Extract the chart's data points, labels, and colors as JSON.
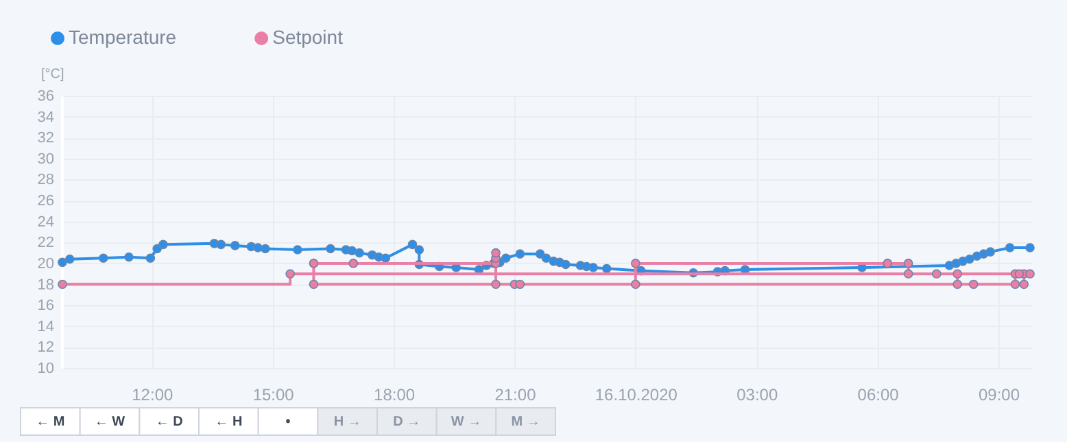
{
  "chart_data": {
    "type": "line",
    "ylabel": "[°C]",
    "xlim": [
      "2020-10-15T09:46",
      "2020-10-16T09:49"
    ],
    "xticks": [
      {
        "value": "2020-10-15T12:00",
        "label": "12:00"
      },
      {
        "value": "2020-10-15T15:00",
        "label": "15:00"
      },
      {
        "value": "2020-10-15T18:00",
        "label": "18:00"
      },
      {
        "value": "2020-10-15T21:00",
        "label": "21:00"
      },
      {
        "value": "2020-10-16T00:00",
        "label": "16.10.2020"
      },
      {
        "value": "2020-10-16T03:00",
        "label": "03:00"
      },
      {
        "value": "2020-10-16T06:00",
        "label": "06:00"
      },
      {
        "value": "2020-10-16T09:00",
        "label": "09:00"
      }
    ],
    "ylim": [
      10,
      36
    ],
    "yticks": [
      10,
      12,
      14,
      16,
      18,
      20,
      22,
      24,
      26,
      28,
      30,
      32,
      34,
      36
    ],
    "grid": true,
    "legend": "top left",
    "marker": "circle",
    "series": [
      {
        "name": "Temperature",
        "color": "#2e8fe8",
        "x": [
          "2020-10-15T09:47",
          "2020-10-15T09:58",
          "2020-10-15T10:48",
          "2020-10-15T11:26",
          "2020-10-15T11:58",
          "2020-10-15T12:08",
          "2020-10-15T12:17",
          "2020-10-15T13:33",
          "2020-10-15T13:43",
          "2020-10-15T14:04",
          "2020-10-15T14:28",
          "2020-10-15T14:38",
          "2020-10-15T14:49",
          "2020-10-15T15:37",
          "2020-10-15T16:26",
          "2020-10-15T16:49",
          "2020-10-15T16:58",
          "2020-10-15T17:09",
          "2020-10-15T17:28",
          "2020-10-15T17:38",
          "2020-10-15T17:48",
          "2020-10-15T18:28",
          "2020-10-15T18:38",
          "2020-10-15T18:38",
          "2020-10-15T19:08",
          "2020-10-15T19:33",
          "2020-10-15T20:07",
          "2020-10-15T20:18",
          "2020-10-15T20:29",
          "2020-10-15T20:38",
          "2020-10-15T20:47",
          "2020-10-15T21:08",
          "2020-10-15T21:38",
          "2020-10-15T21:47",
          "2020-10-15T21:58",
          "2020-10-15T22:07",
          "2020-10-15T22:16",
          "2020-10-15T22:38",
          "2020-10-15T22:47",
          "2020-10-15T22:57",
          "2020-10-15T23:17",
          "2020-10-16T00:08",
          "2020-10-16T01:26",
          "2020-10-16T02:02",
          "2020-10-16T02:13",
          "2020-10-16T02:43",
          "2020-10-16T05:37",
          "2020-10-16T07:47",
          "2020-10-16T07:57",
          "2020-10-16T08:07",
          "2020-10-16T08:17",
          "2020-10-16T08:28",
          "2020-10-16T08:38",
          "2020-10-16T08:48",
          "2020-10-16T09:17",
          "2020-10-16T09:47"
        ],
        "values": [
          20.1,
          20.4,
          20.5,
          20.6,
          20.5,
          21.4,
          21.8,
          21.9,
          21.8,
          21.7,
          21.6,
          21.5,
          21.4,
          21.3,
          21.4,
          21.3,
          21.2,
          21.0,
          20.8,
          20.6,
          20.5,
          21.8,
          21.3,
          19.9,
          19.7,
          19.6,
          19.4,
          19.8,
          20.0,
          20.1,
          20.5,
          20.9,
          20.9,
          20.5,
          20.2,
          20.1,
          19.9,
          19.8,
          19.7,
          19.6,
          19.5,
          19.3,
          19.1,
          19.2,
          19.3,
          19.4,
          19.6,
          19.8,
          20.0,
          20.2,
          20.4,
          20.7,
          20.9,
          21.1,
          21.5,
          21.5
        ]
      },
      {
        "name": "Setpoint",
        "type": "step",
        "color": "#e97fa5",
        "x": [
          "2020-10-15T09:47",
          "2020-10-15T15:26",
          "2020-10-16T09:38",
          "2020-10-16T09:38",
          "2020-10-15T16:01",
          "2020-10-15T16:01",
          "2020-10-15T17:00",
          "2020-10-15T20:32",
          "2020-10-15T20:32",
          "2020-10-15T20:32",
          "2020-10-15T20:32",
          "2020-10-15T21:00",
          "2020-10-15T21:08",
          "2020-10-16T00:00",
          "2020-10-16T00:00",
          "2020-10-16T06:15",
          "2020-10-16T06:46",
          "2020-10-16T06:46",
          "2020-10-16T07:28",
          "2020-10-16T07:59",
          "2020-10-16T07:59",
          "2020-10-16T08:23",
          "2020-10-16T09:25",
          "2020-10-16T09:25",
          "2020-10-16T09:31",
          "2020-10-16T09:47"
        ],
        "values": [
          18,
          19,
          19,
          18,
          18,
          20,
          20,
          20,
          20.5,
          21,
          18,
          18,
          18,
          18,
          20,
          20,
          20,
          19,
          19,
          19,
          18,
          18,
          18,
          19,
          19,
          19
        ]
      }
    ],
    "annotations": [
      "← M",
      "← W",
      "← D",
      "← H",
      "•",
      "H →",
      "D →",
      "W →",
      "M →"
    ]
  }
}
